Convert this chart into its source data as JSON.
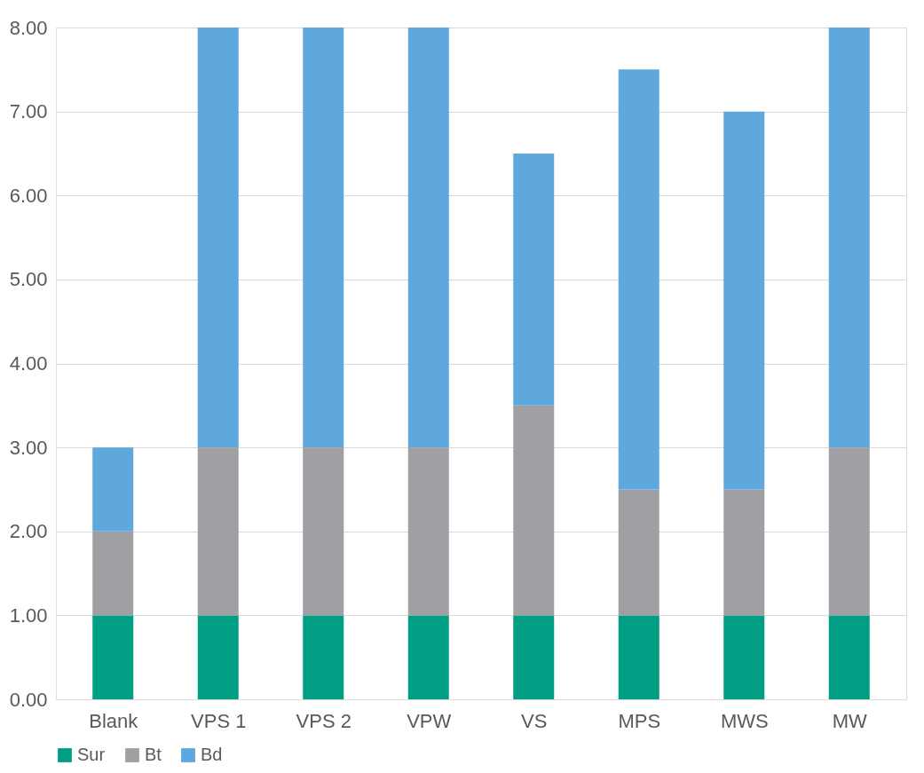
{
  "chart_data": {
    "type": "bar",
    "stacked": true,
    "categories": [
      "Blank",
      "VPS 1",
      "VPS 2",
      "VPW",
      "VS",
      "MPS",
      "MWS",
      "MW"
    ],
    "series": [
      {
        "name": "Sur",
        "color": "#009e83",
        "values": [
          1,
          1,
          1,
          1,
          1,
          1,
          1,
          1
        ]
      },
      {
        "name": "Bt",
        "color": "#a0a0a4",
        "values": [
          1,
          2,
          2,
          2,
          2.5,
          1.5,
          1.5,
          2
        ]
      },
      {
        "name": "Bd",
        "color": "#5fa8de",
        "values": [
          1,
          5,
          5,
          5,
          3,
          5,
          4.5,
          5
        ]
      }
    ],
    "ylim": [
      0,
      8
    ],
    "yticks": [
      {
        "value": 0,
        "label": "0.00"
      },
      {
        "value": 1,
        "label": "1.00"
      },
      {
        "value": 2,
        "label": "2.00"
      },
      {
        "value": 3,
        "label": "3.00"
      },
      {
        "value": 4,
        "label": "4.00"
      },
      {
        "value": 5,
        "label": "5.00"
      },
      {
        "value": 6,
        "label": "6.00"
      },
      {
        "value": 7,
        "label": "7.00"
      },
      {
        "value": 8,
        "label": "8.00"
      }
    ],
    "grid": "y",
    "legend": "bottom"
  }
}
